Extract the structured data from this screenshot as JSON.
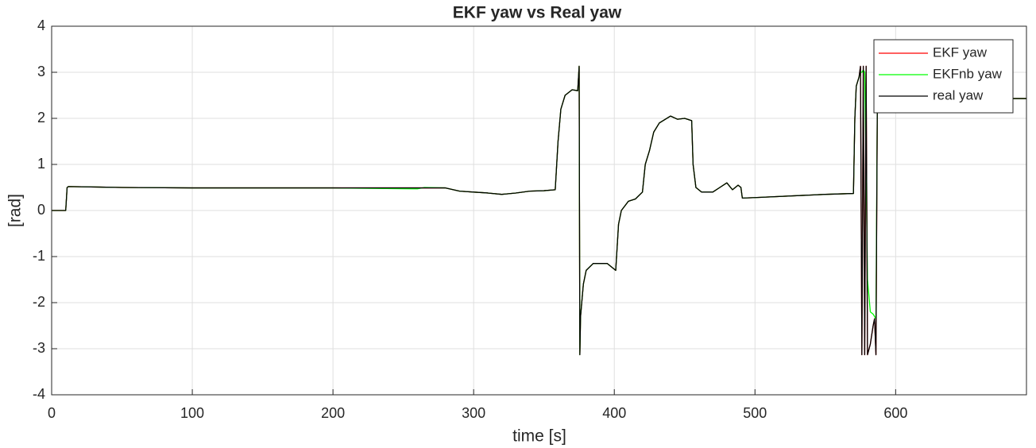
{
  "chart_data": {
    "type": "line",
    "title": "EKF yaw vs Real yaw",
    "xlabel": "time [s]",
    "ylabel": "[rad]",
    "x": [
      0,
      10,
      11,
      12,
      50,
      100,
      200,
      260,
      265,
      280,
      290,
      300,
      310,
      320,
      330,
      340,
      350,
      358,
      360,
      362,
      365,
      370,
      374,
      375,
      375.5,
      376,
      378,
      380,
      385,
      395,
      401,
      403,
      405,
      410,
      415,
      420,
      422,
      425,
      428,
      432,
      440,
      445,
      450,
      455,
      456,
      458,
      462,
      470,
      475,
      480,
      484,
      488,
      490,
      491,
      500,
      550,
      570,
      571,
      572,
      574,
      575,
      576,
      577,
      578,
      579,
      580,
      582,
      584,
      585,
      586,
      587,
      600,
      693
    ],
    "series": [
      {
        "name": "EKF yaw",
        "color": "#ff0000",
        "values": [
          0,
          0,
          0.5,
          0.52,
          0.5,
          0.49,
          0.49,
          0.49,
          0.49,
          0.49,
          0.42,
          0.4,
          0.38,
          0.35,
          0.38,
          0.42,
          0.43,
          0.45,
          1.5,
          2.2,
          2.5,
          2.62,
          2.6,
          3.13,
          -3.13,
          -2.3,
          -1.6,
          -1.3,
          -1.15,
          -1.15,
          -1.3,
          -0.3,
          0,
          0.2,
          0.25,
          0.4,
          1.0,
          1.3,
          1.7,
          1.9,
          2.05,
          1.98,
          2.0,
          1.95,
          1.0,
          0.5,
          0.4,
          0.4,
          0.5,
          0.6,
          0.45,
          0.55,
          0.5,
          0.27,
          0.28,
          0.35,
          0.37,
          2.0,
          2.7,
          2.9,
          3.13,
          -3.13,
          3.13,
          -3.13,
          3.13,
          -3.13,
          -2.9,
          -2.5,
          -2.35,
          -3.13,
          2.43,
          2.43,
          2.43
        ]
      },
      {
        "name": "EKFnb yaw",
        "color": "#00ff00",
        "values": [
          0,
          0,
          0.5,
          0.52,
          0.5,
          0.49,
          0.49,
          0.47,
          0.5,
          0.49,
          0.42,
          0.4,
          0.38,
          0.35,
          0.38,
          0.42,
          0.43,
          0.45,
          1.5,
          2.2,
          2.5,
          2.62,
          2.6,
          3.13,
          -3.13,
          -2.3,
          -1.6,
          -1.3,
          -1.15,
          -1.15,
          -1.3,
          -0.3,
          0,
          0.2,
          0.25,
          0.4,
          1.0,
          1.3,
          1.7,
          1.9,
          2.05,
          1.98,
          2.0,
          1.95,
          1.0,
          0.5,
          0.4,
          0.4,
          0.5,
          0.6,
          0.45,
          0.55,
          0.5,
          0.27,
          0.28,
          0.35,
          0.37,
          2.0,
          2.7,
          2.9,
          3.0,
          3.0,
          3.05,
          3.0,
          1.0,
          -1.5,
          -2.2,
          -2.25,
          -2.3,
          -2.35,
          2.43,
          2.43,
          2.43
        ]
      },
      {
        "name": "real yaw",
        "color": "#000000",
        "values": [
          0,
          0,
          0.5,
          0.52,
          0.5,
          0.49,
          0.49,
          0.49,
          0.49,
          0.49,
          0.42,
          0.4,
          0.38,
          0.35,
          0.38,
          0.42,
          0.43,
          0.45,
          1.5,
          2.2,
          2.5,
          2.62,
          2.6,
          3.13,
          -3.13,
          -2.3,
          -1.6,
          -1.3,
          -1.15,
          -1.15,
          -1.3,
          -0.3,
          0,
          0.2,
          0.25,
          0.4,
          1.0,
          1.3,
          1.7,
          1.9,
          2.05,
          1.98,
          2.0,
          1.95,
          1.0,
          0.5,
          0.4,
          0.4,
          0.5,
          0.6,
          0.45,
          0.55,
          0.5,
          0.27,
          0.28,
          0.35,
          0.37,
          2.0,
          2.7,
          2.9,
          3.13,
          -3.13,
          3.13,
          -3.13,
          3.13,
          -3.13,
          -2.9,
          -2.5,
          -2.35,
          -3.13,
          2.43,
          2.43,
          2.43
        ]
      }
    ],
    "xlim": [
      0,
      693
    ],
    "xticks": [
      0,
      100,
      200,
      300,
      400,
      500,
      600
    ],
    "ylim": [
      -4,
      4
    ],
    "yticks": [
      -4,
      -3,
      -2,
      -1,
      0,
      1,
      2,
      3,
      4
    ],
    "grid": true,
    "legend": "north east"
  }
}
